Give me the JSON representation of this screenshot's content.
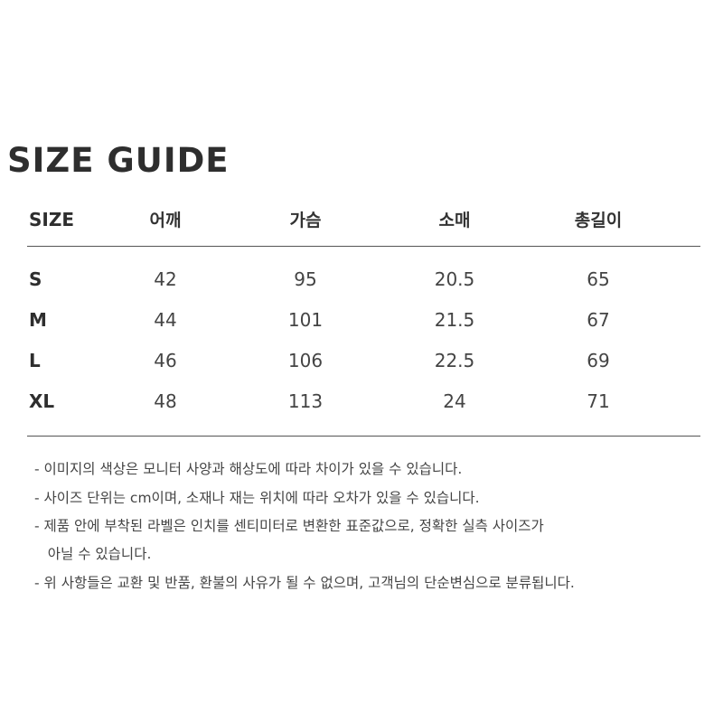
{
  "title": "SIZE GUIDE",
  "table": {
    "headers": [
      "SIZE",
      "어깨",
      "가슴",
      "소매",
      "총길이"
    ],
    "rows": [
      [
        "S",
        "42",
        "95",
        "20.5",
        "65"
      ],
      [
        "M",
        "44",
        "101",
        "21.5",
        "67"
      ],
      [
        "L",
        "46",
        "106",
        "22.5",
        "69"
      ],
      [
        "XL",
        "48",
        "113",
        "24",
        "71"
      ]
    ]
  },
  "notes": [
    "- 이미지의 색상은 모니터 사양과 해상도에 따라 차이가 있을 수 있습니다.",
    "- 사이즈 단위는 cm이며, 소재나 재는 위치에 따라 오차가 있을 수 있습니다.",
    "- 제품 안에 부착된 라벨은 인치를 센티미터로 변환한 표준값으로, 정확한 실측 사이즈가",
    "   아닐 수 있습니다.",
    "- 위 사항들은 교환 및 반품, 환불의 사유가 될 수 없으며, 고객님의 단순변심으로 분류됩니다."
  ]
}
